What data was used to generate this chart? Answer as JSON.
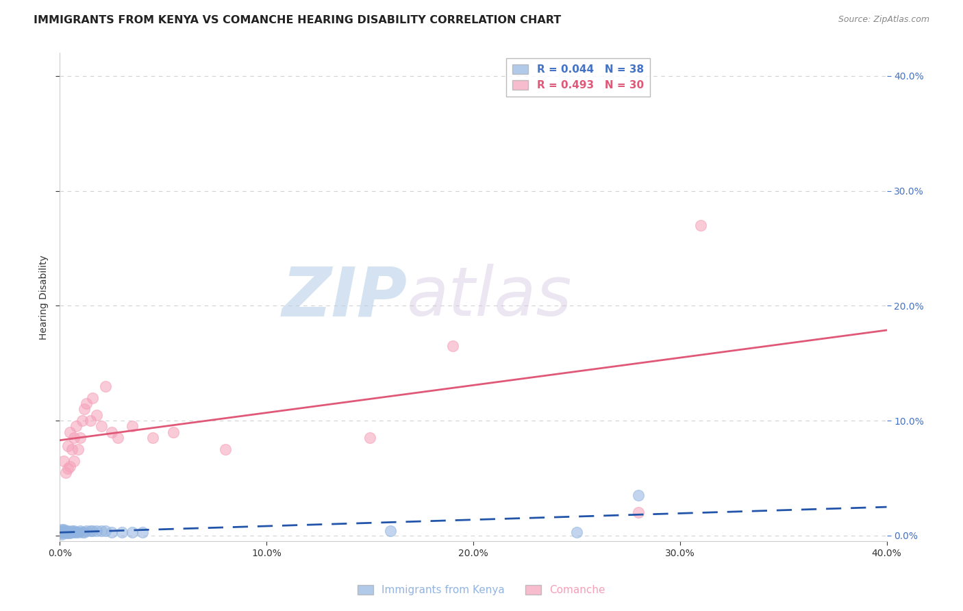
{
  "title": "IMMIGRANTS FROM KENYA VS COMANCHE HEARING DISABILITY CORRELATION CHART",
  "source": "Source: ZipAtlas.com",
  "ylabel": "Hearing Disability",
  "xlim": [
    0.0,
    0.4
  ],
  "ylim": [
    -0.005,
    0.42
  ],
  "kenya_color": "#92b4e0",
  "kenya_fill_color": "#92b4e0",
  "comanche_color": "#f5a0b8",
  "comanche_fill_color": "#f5a0b8",
  "kenya_line_color": "#2255aa",
  "comanche_line_color": "#e05878",
  "right_axis_color": "#4472c4",
  "kenya_scatter": [
    [
      0.001,
      0.002
    ],
    [
      0.001,
      0.003
    ],
    [
      0.001,
      0.004
    ],
    [
      0.001,
      0.005
    ],
    [
      0.001,
      0.001
    ],
    [
      0.002,
      0.003
    ],
    [
      0.002,
      0.004
    ],
    [
      0.002,
      0.005
    ],
    [
      0.003,
      0.003
    ],
    [
      0.003,
      0.002
    ],
    [
      0.003,
      0.004
    ],
    [
      0.004,
      0.003
    ],
    [
      0.004,
      0.002
    ],
    [
      0.004,
      0.004
    ],
    [
      0.005,
      0.003
    ],
    [
      0.005,
      0.002
    ],
    [
      0.006,
      0.003
    ],
    [
      0.006,
      0.004
    ],
    [
      0.007,
      0.004
    ],
    [
      0.007,
      0.003
    ],
    [
      0.008,
      0.003
    ],
    [
      0.009,
      0.003
    ],
    [
      0.01,
      0.004
    ],
    [
      0.011,
      0.003
    ],
    [
      0.012,
      0.003
    ],
    [
      0.013,
      0.004
    ],
    [
      0.015,
      0.004
    ],
    [
      0.016,
      0.004
    ],
    [
      0.018,
      0.004
    ],
    [
      0.02,
      0.004
    ],
    [
      0.022,
      0.004
    ],
    [
      0.025,
      0.003
    ],
    [
      0.03,
      0.003
    ],
    [
      0.035,
      0.003
    ],
    [
      0.04,
      0.003
    ],
    [
      0.16,
      0.004
    ],
    [
      0.25,
      0.003
    ],
    [
      0.28,
      0.035
    ]
  ],
  "comanche_scatter": [
    [
      0.002,
      0.065
    ],
    [
      0.003,
      0.055
    ],
    [
      0.004,
      0.058
    ],
    [
      0.004,
      0.078
    ],
    [
      0.005,
      0.06
    ],
    [
      0.005,
      0.09
    ],
    [
      0.006,
      0.075
    ],
    [
      0.007,
      0.065
    ],
    [
      0.007,
      0.085
    ],
    [
      0.008,
      0.095
    ],
    [
      0.009,
      0.075
    ],
    [
      0.01,
      0.085
    ],
    [
      0.011,
      0.1
    ],
    [
      0.012,
      0.11
    ],
    [
      0.013,
      0.115
    ],
    [
      0.015,
      0.1
    ],
    [
      0.016,
      0.12
    ],
    [
      0.018,
      0.105
    ],
    [
      0.02,
      0.095
    ],
    [
      0.022,
      0.13
    ],
    [
      0.025,
      0.09
    ],
    [
      0.028,
      0.085
    ],
    [
      0.035,
      0.095
    ],
    [
      0.045,
      0.085
    ],
    [
      0.055,
      0.09
    ],
    [
      0.08,
      0.075
    ],
    [
      0.15,
      0.085
    ],
    [
      0.19,
      0.165
    ],
    [
      0.28,
      0.02
    ],
    [
      0.31,
      0.27
    ]
  ],
  "watermark_zip": "ZIP",
  "watermark_atlas": "atlas",
  "background_color": "#ffffff",
  "grid_color": "#cccccc",
  "title_fontsize": 11.5,
  "axis_label_fontsize": 10,
  "tick_fontsize": 10,
  "legend_label1": "R = 0.044   N = 38",
  "legend_label2": "R = 0.493   N = 30",
  "bottom_label1": "Immigrants from Kenya",
  "bottom_label2": "Comanche"
}
